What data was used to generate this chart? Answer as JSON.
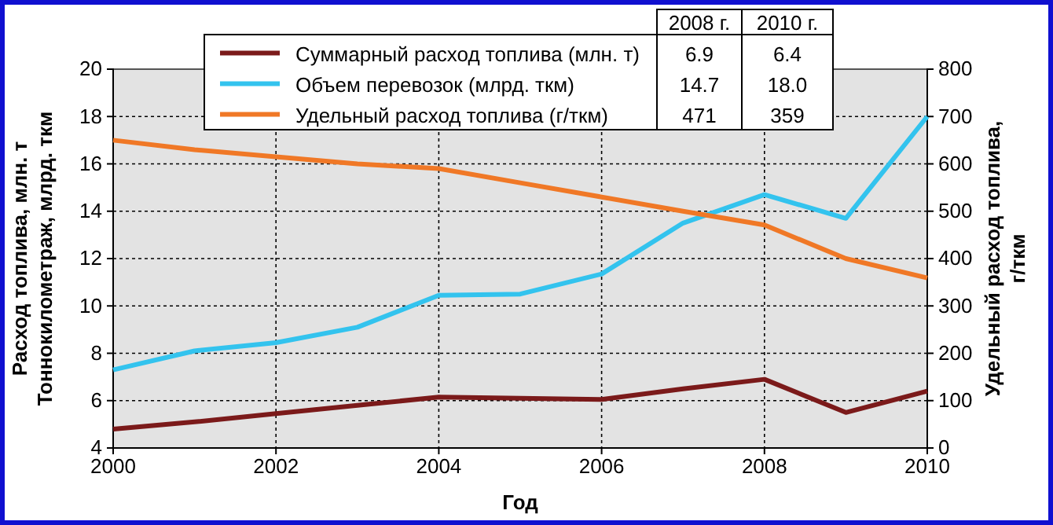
{
  "chart_data": {
    "type": "line",
    "xlabel": "Год",
    "ylabel": "Расход топлива, млн. т\nТоннокилометраж, млрд. ткм",
    "y2label": "Удельный расход топлива,\nг/ткм",
    "x": [
      2000,
      2001,
      2002,
      2003,
      2004,
      2005,
      2006,
      2007,
      2008,
      2009,
      2010
    ],
    "series": [
      {
        "name": "Суммарный расход топлива (млн. т)",
        "color": "#7b1a1a",
        "values": [
          4.8,
          5.1,
          5.45,
          5.8,
          6.15,
          6.1,
          6.05,
          6.5,
          6.9,
          5.5,
          6.4
        ]
      },
      {
        "name": "Объем перевозок (млрд. ткм)",
        "color": "#33c3ee",
        "values": [
          7.3,
          8.1,
          8.45,
          9.1,
          10.45,
          10.5,
          11.35,
          13.5,
          14.7,
          13.7,
          18.0
        ]
      },
      {
        "name": "Удельный расход топлива (г/ткм)",
        "color": "#f07826",
        "axis": "y2",
        "values": [
          650,
          630,
          615,
          600,
          590,
          560,
          530,
          500,
          471,
          400,
          359
        ]
      }
    ],
    "annotations": [
      "2008 г.",
      "2010 г.",
      "6.9",
      "6.4",
      "14.7",
      "18.0",
      "471",
      "359"
    ],
    "xlim": [
      2000,
      2010
    ],
    "xticks": [
      2000,
      2002,
      2004,
      2006,
      2008,
      2010
    ],
    "ylim": [
      4,
      20
    ],
    "yticks": [
      4,
      6,
      8,
      10,
      12,
      14,
      16,
      18,
      20
    ],
    "y2lim": [
      0,
      800
    ],
    "y2ticks": [
      0,
      100,
      200,
      300,
      400,
      500,
      600,
      700,
      800
    ],
    "grid": true,
    "legend": "top",
    "marker": "none",
    "line_style": "solid"
  }
}
